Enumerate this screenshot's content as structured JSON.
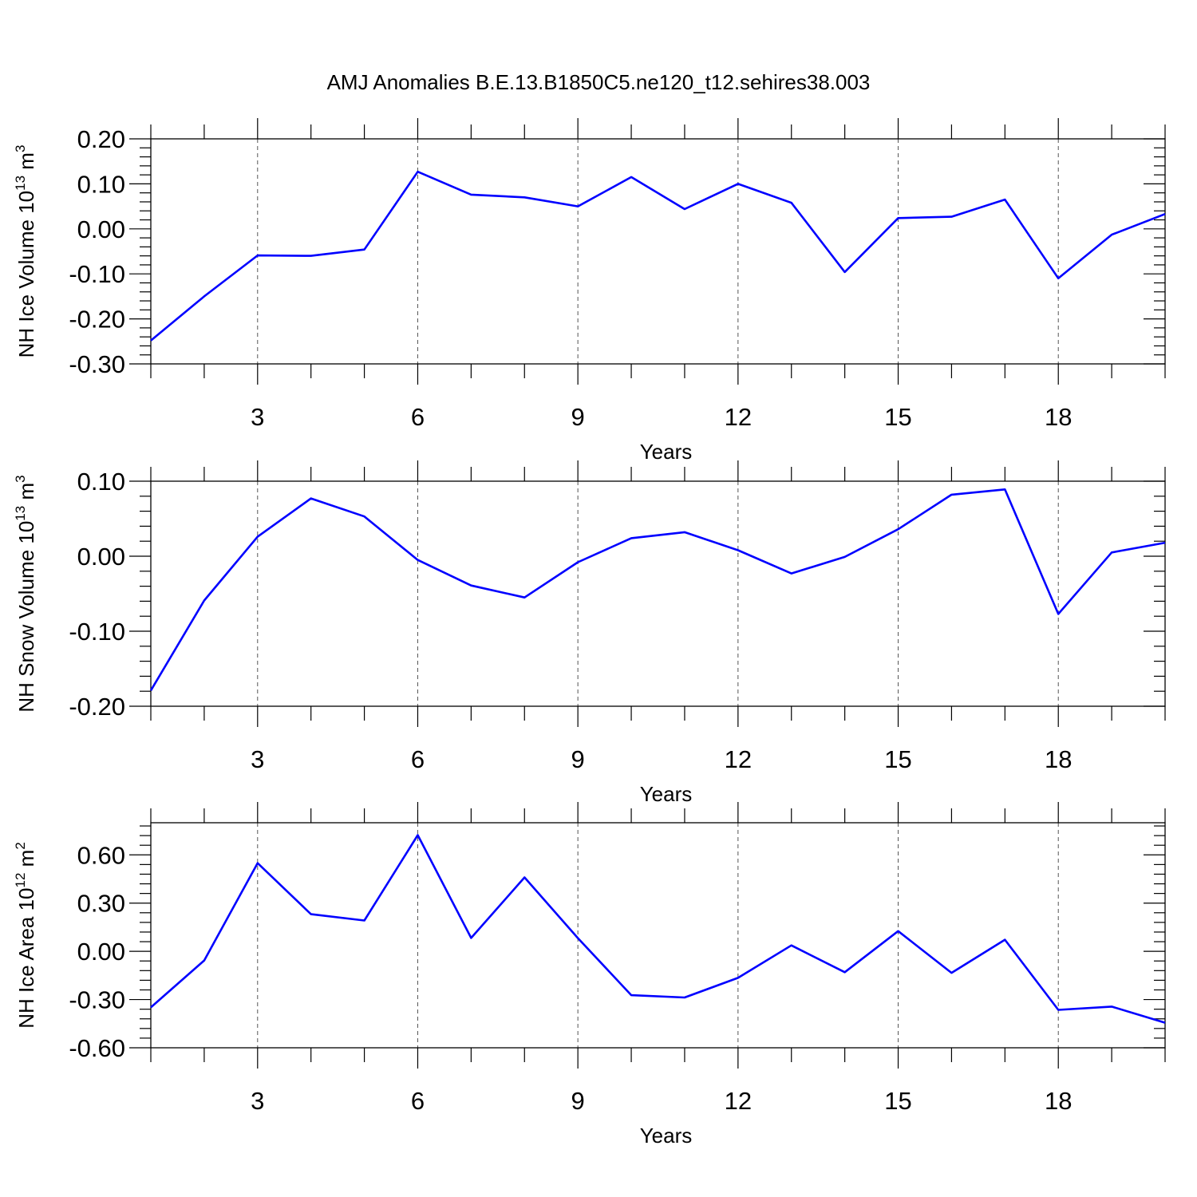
{
  "figure": {
    "title": "AMJ Anomalies B.E.13.B1850C5.ne120_t12.sehires38.003"
  },
  "colors": {
    "line": "#0000ff",
    "axis": "#000000",
    "grid": "#555555"
  },
  "chart_data": [
    {
      "type": "line",
      "ylabel_main": "NH Ice Volume 10",
      "ylabel_exp": "13",
      "ylabel_unit": " m",
      "ylabel_unit_exp": "3",
      "xlabel": "Years",
      "xlim": [
        1,
        20
      ],
      "ylim": [
        -0.3,
        0.2
      ],
      "yticks": [
        -0.3,
        -0.2,
        -0.1,
        0.0,
        0.1,
        0.2
      ],
      "ytick_labels": [
        "-0.30",
        "-0.20",
        "-0.10",
        "0.00",
        "0.10",
        "0.20"
      ],
      "yminor_step": 0.02,
      "xticks": [
        3,
        6,
        9,
        12,
        15,
        18
      ],
      "xtick_labels": [
        "3",
        "6",
        "9",
        "12",
        "15",
        "18"
      ],
      "grid": "vertical dashed at major x ticks",
      "x": [
        1,
        2,
        3,
        4,
        5,
        6,
        7,
        8,
        9,
        10,
        11,
        12,
        13,
        14,
        15,
        16,
        17,
        18,
        19,
        20
      ],
      "values": [
        -0.248,
        -0.15,
        -0.059,
        -0.06,
        -0.046,
        0.127,
        0.076,
        0.07,
        0.05,
        0.115,
        0.044,
        0.1,
        0.058,
        -0.096,
        0.024,
        0.027,
        0.065,
        -0.11,
        -0.013,
        0.033
      ]
    },
    {
      "type": "line",
      "ylabel_main": "NH Snow Volume 10",
      "ylabel_exp": "13",
      "ylabel_unit": " m",
      "ylabel_unit_exp": "3",
      "xlabel": "Years",
      "xlim": [
        1,
        20
      ],
      "ylim": [
        -0.2,
        0.1
      ],
      "yticks": [
        -0.2,
        -0.1,
        0.0,
        0.1
      ],
      "ytick_labels": [
        "-0.20",
        "-0.10",
        "0.00",
        "0.10"
      ],
      "yminor_step": 0.02,
      "xticks": [
        3,
        6,
        9,
        12,
        15,
        18
      ],
      "xtick_labels": [
        "3",
        "6",
        "9",
        "12",
        "15",
        "18"
      ],
      "grid": "vertical dashed at major x ticks",
      "x": [
        1,
        2,
        3,
        4,
        5,
        6,
        7,
        8,
        9,
        10,
        11,
        12,
        13,
        14,
        15,
        16,
        17,
        18,
        19,
        20
      ],
      "values": [
        -0.179,
        -0.059,
        0.026,
        0.077,
        0.053,
        -0.005,
        -0.039,
        -0.055,
        -0.008,
        0.024,
        0.032,
        0.008,
        -0.023,
        -0.001,
        0.036,
        0.082,
        0.089,
        -0.077,
        0.005,
        0.018
      ]
    },
    {
      "type": "line",
      "ylabel_main": "NH Ice Area 10",
      "ylabel_exp": "12",
      "ylabel_unit": " m",
      "ylabel_unit_exp": "2",
      "xlabel": "Years",
      "xlim": [
        1,
        20
      ],
      "ylim": [
        -0.6,
        0.8
      ],
      "yticks": [
        -0.6,
        -0.3,
        0.0,
        0.3,
        0.6
      ],
      "ytick_labels": [
        "-0.60",
        "-0.30",
        "0.00",
        "0.30",
        "0.60"
      ],
      "yminor_step": 0.06,
      "xticks": [
        3,
        6,
        9,
        12,
        15,
        18
      ],
      "xtick_labels": [
        "3",
        "6",
        "9",
        "12",
        "15",
        "18"
      ],
      "grid": "vertical dashed at major x ticks",
      "x": [
        1,
        2,
        3,
        4,
        5,
        6,
        7,
        8,
        9,
        10,
        11,
        12,
        13,
        14,
        15,
        16,
        17,
        18,
        19,
        20
      ],
      "values": [
        -0.349,
        -0.057,
        0.549,
        0.231,
        0.192,
        0.723,
        0.083,
        0.46,
        0.082,
        -0.273,
        -0.287,
        -0.165,
        0.037,
        -0.13,
        0.126,
        -0.134,
        0.072,
        -0.364,
        -0.344,
        -0.444
      ]
    }
  ]
}
